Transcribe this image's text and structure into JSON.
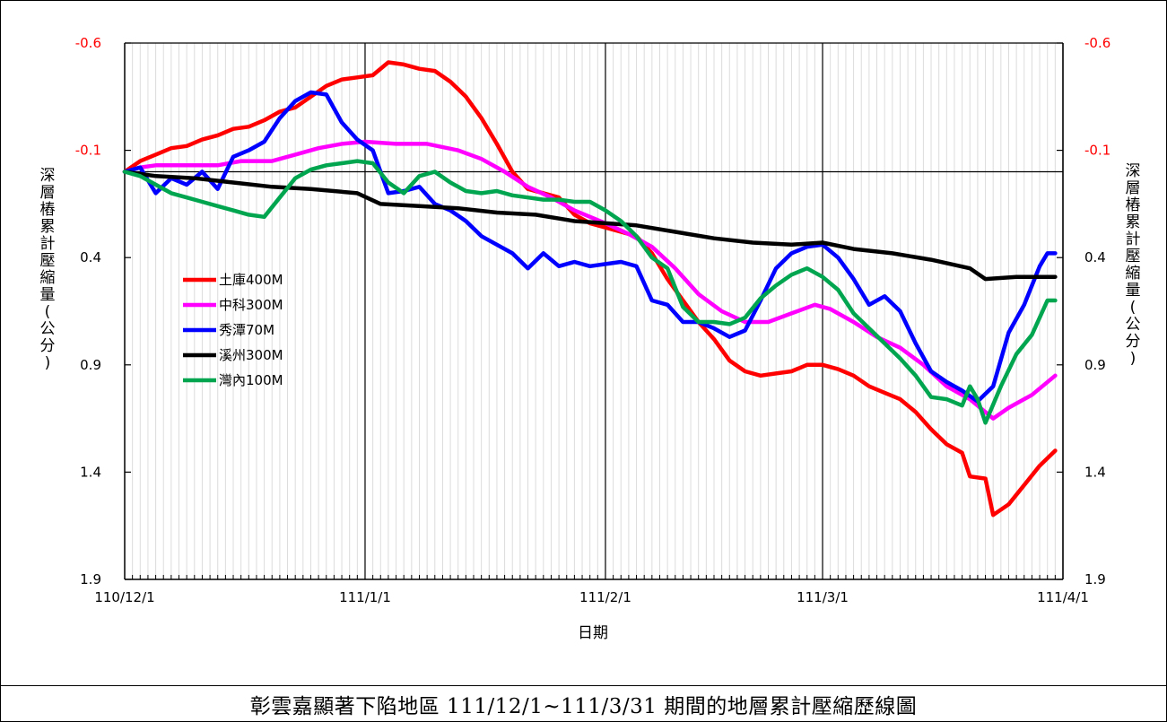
{
  "caption": "彰雲嘉顯著下陷地區 111/12/1~111/3/31 期間的地層累計壓縮歷線圖",
  "chart_data": {
    "type": "line",
    "xlabel": "日期",
    "ylabel": "深層樁累計壓縮量(公分)",
    "x_tick_labels": [
      "110/12/1",
      "111/1/1",
      "111/2/1",
      "111/3/1",
      "111/4/1"
    ],
    "x_range": [
      "110/12/1",
      "111/4/1"
    ],
    "y_reversed": true,
    "ylim": [
      -0.6,
      1.9
    ],
    "y_ticks": [
      -0.6,
      -0.1,
      0.4,
      0.9,
      1.4,
      1.9
    ],
    "y_tick_labels_red": [
      "-0.6",
      "-0.1"
    ],
    "y_tick_labels_black": [
      "0.4",
      "0.9",
      "1.4",
      "1.9"
    ],
    "reference_line_y": 0.0,
    "grid": "vertical minor daily, vertical major monthly",
    "legend_position": "left-middle",
    "series": [
      {
        "name": "土庫400M",
        "color": "#ff0000",
        "points": [
          [
            "110/12/1",
            0.0
          ],
          [
            "110/12/3",
            -0.05
          ],
          [
            "110/12/5",
            -0.08
          ],
          [
            "110/12/7",
            -0.11
          ],
          [
            "110/12/9",
            -0.12
          ],
          [
            "110/12/11",
            -0.15
          ],
          [
            "110/12/13",
            -0.17
          ],
          [
            "110/12/15",
            -0.2
          ],
          [
            "110/12/17",
            -0.21
          ],
          [
            "110/12/19",
            -0.24
          ],
          [
            "110/12/21",
            -0.28
          ],
          [
            "110/12/23",
            -0.3
          ],
          [
            "110/12/25",
            -0.35
          ],
          [
            "110/12/27",
            -0.4
          ],
          [
            "110/12/29",
            -0.43
          ],
          [
            "110/12/31",
            -0.44
          ],
          [
            "111/1/2",
            -0.45
          ],
          [
            "111/1/4",
            -0.51
          ],
          [
            "111/1/6",
            -0.5
          ],
          [
            "111/1/8",
            -0.48
          ],
          [
            "111/1/10",
            -0.47
          ],
          [
            "111/1/12",
            -0.42
          ],
          [
            "111/1/14",
            -0.35
          ],
          [
            "111/1/16",
            -0.25
          ],
          [
            "111/1/18",
            -0.13
          ],
          [
            "111/1/20",
            0.0
          ],
          [
            "111/1/22",
            0.08
          ],
          [
            "111/1/24",
            0.1
          ],
          [
            "111/1/26",
            0.12
          ],
          [
            "111/1/28",
            0.2
          ],
          [
            "111/1/30",
            0.24
          ],
          [
            "111/2/1",
            0.26
          ],
          [
            "111/2/3",
            0.28
          ],
          [
            "111/2/5",
            0.3
          ],
          [
            "111/2/7",
            0.38
          ],
          [
            "111/2/9",
            0.5
          ],
          [
            "111/2/11",
            0.6
          ],
          [
            "111/2/13",
            0.7
          ],
          [
            "111/2/15",
            0.78
          ],
          [
            "111/2/17",
            0.88
          ],
          [
            "111/2/19",
            0.93
          ],
          [
            "111/2/21",
            0.95
          ],
          [
            "111/2/23",
            0.94
          ],
          [
            "111/2/25",
            0.93
          ],
          [
            "111/2/27",
            0.9
          ],
          [
            "111/3/1",
            0.9
          ],
          [
            "111/3/3",
            0.92
          ],
          [
            "111/3/5",
            0.95
          ],
          [
            "111/3/7",
            1.0
          ],
          [
            "111/3/9",
            1.03
          ],
          [
            "111/3/11",
            1.06
          ],
          [
            "111/3/13",
            1.12
          ],
          [
            "111/3/15",
            1.2
          ],
          [
            "111/3/17",
            1.27
          ],
          [
            "111/3/19",
            1.31
          ],
          [
            "111/3/20",
            1.42
          ],
          [
            "111/3/22",
            1.43
          ],
          [
            "111/3/23",
            1.6
          ],
          [
            "111/3/25",
            1.55
          ],
          [
            "111/3/27",
            1.46
          ],
          [
            "111/3/29",
            1.37
          ],
          [
            "111/3/31",
            1.3
          ]
        ]
      },
      {
        "name": "中科300M",
        "color": "#ff00ff",
        "points": [
          [
            "110/12/1",
            0.0
          ],
          [
            "110/12/3",
            -0.02
          ],
          [
            "110/12/5",
            -0.03
          ],
          [
            "110/12/7",
            -0.03
          ],
          [
            "110/12/10",
            -0.03
          ],
          [
            "110/12/13",
            -0.03
          ],
          [
            "110/12/16",
            -0.05
          ],
          [
            "110/12/20",
            -0.05
          ],
          [
            "110/12/23",
            -0.08
          ],
          [
            "110/12/26",
            -0.11
          ],
          [
            "110/12/29",
            -0.13
          ],
          [
            "111/1/1",
            -0.14
          ],
          [
            "111/1/5",
            -0.13
          ],
          [
            "111/1/9",
            -0.13
          ],
          [
            "111/1/13",
            -0.1
          ],
          [
            "111/1/16",
            -0.06
          ],
          [
            "111/1/19",
            0.0
          ],
          [
            "111/1/22",
            0.07
          ],
          [
            "111/1/25",
            0.12
          ],
          [
            "111/1/28",
            0.18
          ],
          [
            "111/2/1",
            0.24
          ],
          [
            "111/2/4",
            0.29
          ],
          [
            "111/2/7",
            0.35
          ],
          [
            "111/2/10",
            0.45
          ],
          [
            "111/2/13",
            0.57
          ],
          [
            "111/2/16",
            0.65
          ],
          [
            "111/2/19",
            0.7
          ],
          [
            "111/2/22",
            0.7
          ],
          [
            "111/2/25",
            0.66
          ],
          [
            "111/2/28",
            0.62
          ],
          [
            "111/3/2",
            0.64
          ],
          [
            "111/3/5",
            0.7
          ],
          [
            "111/3/8",
            0.77
          ],
          [
            "111/3/11",
            0.82
          ],
          [
            "111/3/14",
            0.9
          ],
          [
            "111/3/17",
            1.0
          ],
          [
            "111/3/20",
            1.06
          ],
          [
            "111/3/23",
            1.15
          ],
          [
            "111/3/25",
            1.1
          ],
          [
            "111/3/28",
            1.04
          ],
          [
            "111/3/31",
            0.95
          ]
        ]
      },
      {
        "name": "秀潭70M",
        "color": "#0000ff",
        "points": [
          [
            "110/12/1",
            0.0
          ],
          [
            "110/12/3",
            -0.02
          ],
          [
            "110/12/5",
            0.1
          ],
          [
            "110/12/7",
            0.03
          ],
          [
            "110/12/9",
            0.06
          ],
          [
            "110/12/11",
            0.0
          ],
          [
            "110/12/13",
            0.08
          ],
          [
            "110/12/15",
            -0.07
          ],
          [
            "110/12/17",
            -0.1
          ],
          [
            "110/12/19",
            -0.14
          ],
          [
            "110/12/21",
            -0.25
          ],
          [
            "110/12/23",
            -0.33
          ],
          [
            "110/12/25",
            -0.37
          ],
          [
            "110/12/27",
            -0.36
          ],
          [
            "110/12/29",
            -0.23
          ],
          [
            "110/12/31",
            -0.15
          ],
          [
            "111/1/2",
            -0.1
          ],
          [
            "111/1/4",
            0.1
          ],
          [
            "111/1/6",
            0.09
          ],
          [
            "111/1/8",
            0.07
          ],
          [
            "111/1/10",
            0.15
          ],
          [
            "111/1/12",
            0.18
          ],
          [
            "111/1/14",
            0.23
          ],
          [
            "111/1/16",
            0.3
          ],
          [
            "111/1/18",
            0.34
          ],
          [
            "111/1/20",
            0.38
          ],
          [
            "111/1/22",
            0.45
          ],
          [
            "111/1/24",
            0.38
          ],
          [
            "111/1/26",
            0.44
          ],
          [
            "111/1/28",
            0.42
          ],
          [
            "111/1/30",
            0.44
          ],
          [
            "111/2/1",
            0.43
          ],
          [
            "111/2/3",
            0.42
          ],
          [
            "111/2/5",
            0.44
          ],
          [
            "111/2/7",
            0.6
          ],
          [
            "111/2/9",
            0.62
          ],
          [
            "111/2/11",
            0.7
          ],
          [
            "111/2/13",
            0.7
          ],
          [
            "111/2/15",
            0.73
          ],
          [
            "111/2/17",
            0.77
          ],
          [
            "111/2/19",
            0.74
          ],
          [
            "111/2/21",
            0.6
          ],
          [
            "111/2/23",
            0.45
          ],
          [
            "111/2/25",
            0.38
          ],
          [
            "111/2/27",
            0.35
          ],
          [
            "111/3/1",
            0.34
          ],
          [
            "111/3/3",
            0.4
          ],
          [
            "111/3/5",
            0.5
          ],
          [
            "111/3/7",
            0.62
          ],
          [
            "111/3/9",
            0.58
          ],
          [
            "111/3/11",
            0.65
          ],
          [
            "111/3/13",
            0.8
          ],
          [
            "111/3/15",
            0.93
          ],
          [
            "111/3/17",
            0.98
          ],
          [
            "111/3/19",
            1.02
          ],
          [
            "111/3/21",
            1.07
          ],
          [
            "111/3/23",
            1.0
          ],
          [
            "111/3/25",
            0.75
          ],
          [
            "111/3/27",
            0.62
          ],
          [
            "111/3/29",
            0.44
          ],
          [
            "111/3/30",
            0.38
          ],
          [
            "111/3/31",
            0.38
          ]
        ]
      },
      {
        "name": "溪州300M",
        "color": "#000000",
        "points": [
          [
            "110/12/1",
            0.0
          ],
          [
            "110/12/5",
            0.02
          ],
          [
            "110/12/10",
            0.03
          ],
          [
            "110/12/15",
            0.05
          ],
          [
            "110/12/20",
            0.07
          ],
          [
            "110/12/25",
            0.08
          ],
          [
            "110/12/31",
            0.1
          ],
          [
            "111/1/3",
            0.15
          ],
          [
            "111/1/8",
            0.16
          ],
          [
            "111/1/13",
            0.17
          ],
          [
            "111/1/18",
            0.19
          ],
          [
            "111/1/23",
            0.2
          ],
          [
            "111/1/28",
            0.23
          ],
          [
            "111/2/1",
            0.24
          ],
          [
            "111/2/5",
            0.25
          ],
          [
            "111/2/10",
            0.28
          ],
          [
            "111/2/15",
            0.31
          ],
          [
            "111/2/20",
            0.33
          ],
          [
            "111/2/25",
            0.34
          ],
          [
            "111/3/1",
            0.33
          ],
          [
            "111/3/5",
            0.36
          ],
          [
            "111/3/10",
            0.38
          ],
          [
            "111/3/15",
            0.41
          ],
          [
            "111/3/20",
            0.45
          ],
          [
            "111/3/22",
            0.5
          ],
          [
            "111/3/26",
            0.49
          ],
          [
            "111/3/31",
            0.49
          ]
        ]
      },
      {
        "name": "灣內100M",
        "color": "#00a550",
        "points": [
          [
            "110/12/1",
            0.0
          ],
          [
            "110/12/3",
            0.02
          ],
          [
            "110/12/5",
            0.06
          ],
          [
            "110/12/7",
            0.1
          ],
          [
            "110/12/9",
            0.12
          ],
          [
            "110/12/11",
            0.14
          ],
          [
            "110/12/13",
            0.16
          ],
          [
            "110/12/15",
            0.18
          ],
          [
            "110/12/17",
            0.2
          ],
          [
            "110/12/19",
            0.21
          ],
          [
            "110/12/21",
            0.12
          ],
          [
            "110/12/23",
            0.03
          ],
          [
            "110/12/25",
            -0.01
          ],
          [
            "110/12/27",
            -0.03
          ],
          [
            "110/12/29",
            -0.04
          ],
          [
            "110/12/31",
            -0.05
          ],
          [
            "111/1/2",
            -0.04
          ],
          [
            "111/1/4",
            0.05
          ],
          [
            "111/1/6",
            0.1
          ],
          [
            "111/1/8",
            0.02
          ],
          [
            "111/1/10",
            0.0
          ],
          [
            "111/1/12",
            0.05
          ],
          [
            "111/1/14",
            0.09
          ],
          [
            "111/1/16",
            0.1
          ],
          [
            "111/1/18",
            0.09
          ],
          [
            "111/1/20",
            0.11
          ],
          [
            "111/1/22",
            0.12
          ],
          [
            "111/1/24",
            0.13
          ],
          [
            "111/1/26",
            0.13
          ],
          [
            "111/1/28",
            0.14
          ],
          [
            "111/1/30",
            0.14
          ],
          [
            "111/2/1",
            0.18
          ],
          [
            "111/2/3",
            0.23
          ],
          [
            "111/2/5",
            0.3
          ],
          [
            "111/2/7",
            0.4
          ],
          [
            "111/2/9",
            0.45
          ],
          [
            "111/2/11",
            0.63
          ],
          [
            "111/2/13",
            0.7
          ],
          [
            "111/2/15",
            0.7
          ],
          [
            "111/2/17",
            0.71
          ],
          [
            "111/2/19",
            0.68
          ],
          [
            "111/2/21",
            0.59
          ],
          [
            "111/2/23",
            0.53
          ],
          [
            "111/2/25",
            0.48
          ],
          [
            "111/2/27",
            0.45
          ],
          [
            "111/3/1",
            0.49
          ],
          [
            "111/3/3",
            0.55
          ],
          [
            "111/3/5",
            0.66
          ],
          [
            "111/3/7",
            0.73
          ],
          [
            "111/3/9",
            0.8
          ],
          [
            "111/3/11",
            0.87
          ],
          [
            "111/3/13",
            0.95
          ],
          [
            "111/3/15",
            1.05
          ],
          [
            "111/3/17",
            1.06
          ],
          [
            "111/3/19",
            1.09
          ],
          [
            "111/3/20",
            1.0
          ],
          [
            "111/3/21",
            1.06
          ],
          [
            "111/3/22",
            1.17
          ],
          [
            "111/3/24",
            1.0
          ],
          [
            "111/3/26",
            0.85
          ],
          [
            "111/3/28",
            0.76
          ],
          [
            "111/3/30",
            0.6
          ],
          [
            "111/3/31",
            0.6
          ]
        ]
      }
    ]
  }
}
